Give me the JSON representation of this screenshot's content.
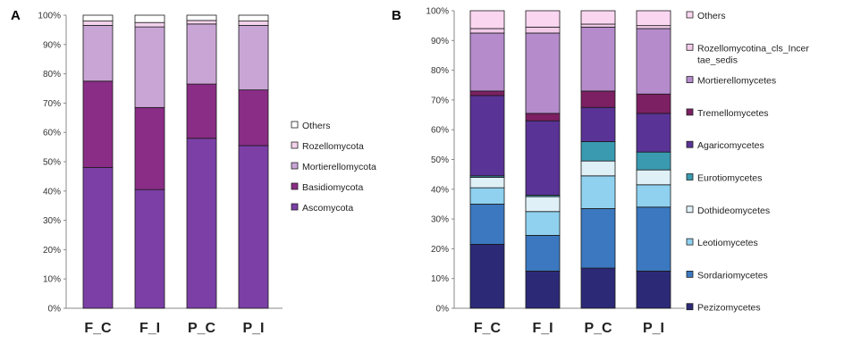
{
  "chart_data": [
    {
      "panel": "A",
      "type": "bar",
      "stacked": true,
      "categories": [
        "F_C",
        "F_I",
        "P_C",
        "P_I"
      ],
      "ylim": [
        0,
        100
      ],
      "yticks": [
        "0%",
        "10%",
        "20%",
        "30%",
        "40%",
        "50%",
        "60%",
        "70%",
        "80%",
        "90%",
        "100%"
      ],
      "legend_position": "right",
      "series": [
        {
          "name": "Ascomycota",
          "color": "#7b3fa6",
          "values": [
            48,
            40.5,
            58,
            55.5
          ]
        },
        {
          "name": "Basidiomycota",
          "color": "#8a2d86",
          "values": [
            29.5,
            28,
            18.5,
            19
          ]
        },
        {
          "name": "Mortierellomycota",
          "color": "#c9a5d6",
          "values": [
            19,
            27.5,
            20.5,
            22
          ]
        },
        {
          "name": "Rozellomycota",
          "color": "#f3d1ec",
          "values": [
            1.5,
            1.5,
            1.2,
            1.5
          ]
        },
        {
          "name": "Others",
          "color": "#ffffff",
          "values": [
            2,
            2.5,
            1.8,
            2
          ]
        }
      ]
    },
    {
      "panel": "B",
      "type": "bar",
      "stacked": true,
      "categories": [
        "F_C",
        "F_I",
        "P_C",
        "P_I"
      ],
      "ylim": [
        0,
        100
      ],
      "yticks": [
        "0%",
        "10%",
        "20%",
        "30%",
        "40%",
        "50%",
        "60%",
        "70%",
        "80%",
        "90%",
        "100%"
      ],
      "legend_position": "right",
      "series": [
        {
          "name": "Pezizomycetes",
          "color": "#2c2a77",
          "values": [
            21.5,
            12.5,
            13.5,
            12.5
          ]
        },
        {
          "name": "Sordariomycetes",
          "color": "#3b78c0",
          "values": [
            13.5,
            12,
            20,
            21.5
          ]
        },
        {
          "name": "Leotiomycetes",
          "color": "#8fd1ef",
          "values": [
            5.5,
            8,
            11,
            7.5
          ]
        },
        {
          "name": "Dothideomycetes",
          "color": "#dff0f7",
          "values": [
            3.5,
            5,
            5,
            5
          ]
        },
        {
          "name": "Eurotiomycetes",
          "color": "#3a9ab0",
          "values": [
            0.5,
            0.5,
            6.5,
            6
          ]
        },
        {
          "name": "Agaricomycetes",
          "color": "#5a3396",
          "values": [
            27,
            25,
            11.5,
            13
          ]
        },
        {
          "name": "Tremellomycetes",
          "color": "#7d2063",
          "values": [
            1.5,
            2.5,
            5.5,
            6.5
          ]
        },
        {
          "name": "Mortierellomycetes",
          "color": "#b58bcc",
          "values": [
            19.5,
            27,
            21.5,
            22
          ]
        },
        {
          "name": "Rozellomycotina_cls_Incertae_sedis",
          "label_lines": [
            "Rozellomycotina_cls_Incer",
            "tae_sedis"
          ],
          "color": "#f2cbe9",
          "values": [
            1.5,
            2,
            1,
            1
          ]
        },
        {
          "name": "Others",
          "color": "#fbd6f1",
          "values": [
            6,
            5.5,
            4.5,
            5
          ]
        }
      ]
    }
  ]
}
